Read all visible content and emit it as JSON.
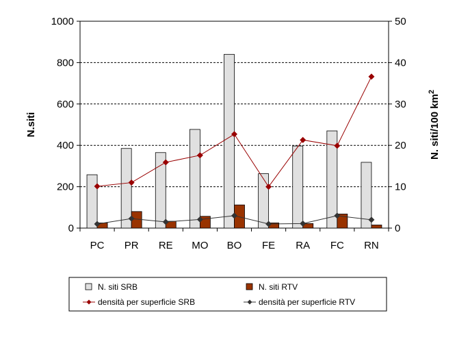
{
  "chart_data": {
    "type": "bar",
    "categories": [
      "PC",
      "PR",
      "RE",
      "MO",
      "BO",
      "FE",
      "RA",
      "FC",
      "RN"
    ],
    "ylabel": "N.siti",
    "y2label_main": "N. siti/100 km",
    "y2label_sup": "2",
    "ylim": [
      0,
      1000
    ],
    "y2lim": [
      0,
      50
    ],
    "yticks": [
      "0",
      "200",
      "400",
      "600",
      "800",
      "1000"
    ],
    "y2ticks": [
      "0",
      "10",
      "20",
      "30",
      "40",
      "50"
    ],
    "grid": true,
    "legend_position": "bottom",
    "series": [
      {
        "name": "N. siti SRB",
        "kind": "bar",
        "axis": "left",
        "color": "#e0e0e0",
        "values": [
          258,
          385,
          365,
          477,
          840,
          263,
          397,
          470,
          318
        ]
      },
      {
        "name": "N. siti RTV",
        "kind": "bar",
        "axis": "left",
        "color": "#993300",
        "values": [
          25,
          80,
          33,
          57,
          112,
          25,
          22,
          68,
          15
        ]
      },
      {
        "name": "densità per superficie SRB",
        "kind": "line",
        "axis": "right",
        "color": "#990000",
        "values": [
          10.1,
          11.0,
          15.9,
          17.6,
          22.7,
          10.0,
          21.3,
          19.9,
          36.6
        ]
      },
      {
        "name": "densità per superficie RTV",
        "kind": "line",
        "axis": "right",
        "color": "#333333",
        "values": [
          1.0,
          2.3,
          1.5,
          2.1,
          3.0,
          1.0,
          1.1,
          3.0,
          2.0
        ]
      }
    ]
  }
}
